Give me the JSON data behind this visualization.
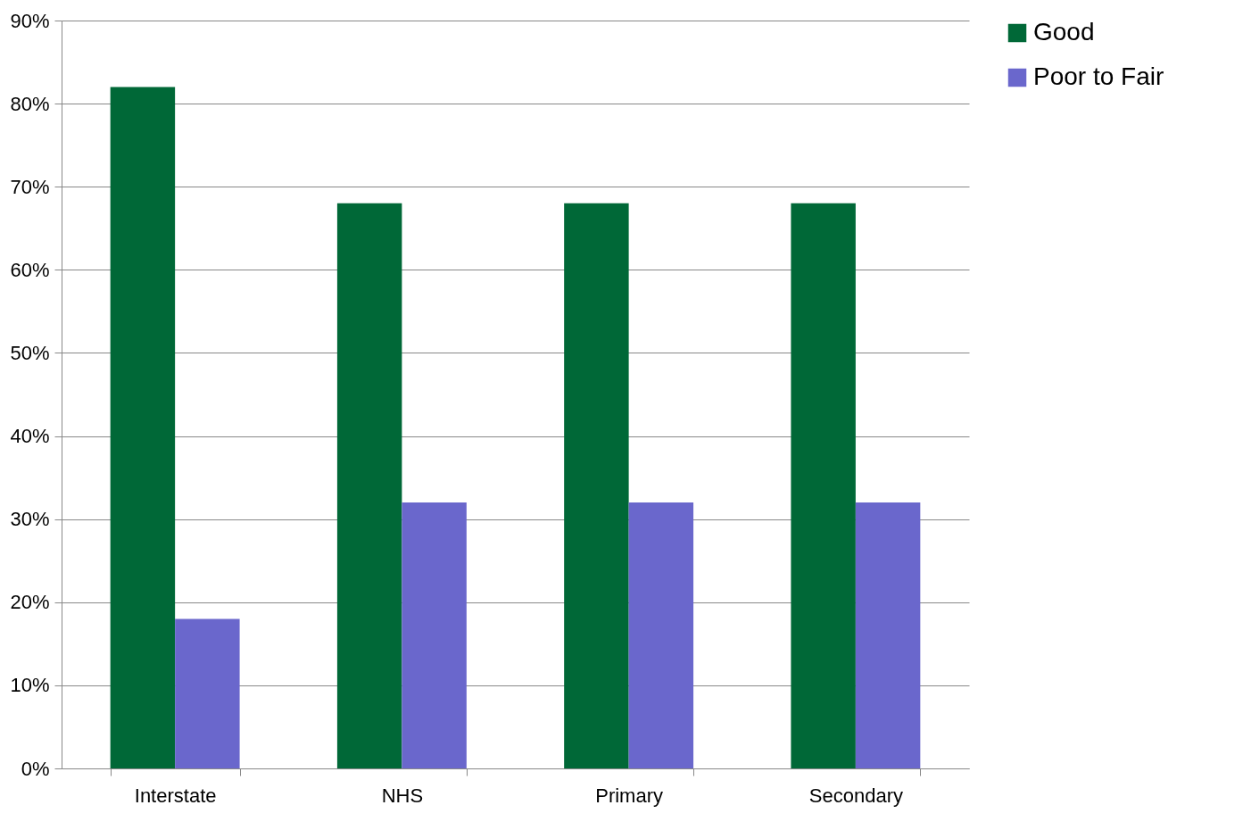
{
  "chart_data": {
    "type": "bar",
    "categories": [
      "Interstate",
      "NHS",
      "Primary",
      "Secondary"
    ],
    "series": [
      {
        "name": "Good",
        "color": "#006837",
        "values": [
          82,
          68,
          68,
          68
        ]
      },
      {
        "name": "Poor to Fair",
        "color": "#6a67cc",
        "values": [
          18,
          32,
          32,
          32
        ]
      }
    ],
    "ylim": [
      0,
      90
    ],
    "yticks": [
      {
        "value": 0,
        "label": "0%"
      },
      {
        "value": 10,
        "label": "10%"
      },
      {
        "value": 20,
        "label": "20%"
      },
      {
        "value": 30,
        "label": "30%"
      },
      {
        "value": 40,
        "label": "40%"
      },
      {
        "value": 50,
        "label": "50%"
      },
      {
        "value": 60,
        "label": "60%"
      },
      {
        "value": 70,
        "label": "70%"
      },
      {
        "value": 80,
        "label": "80%"
      },
      {
        "value": 90,
        "label": "90%"
      }
    ],
    "grid": "y",
    "legend": "right"
  }
}
